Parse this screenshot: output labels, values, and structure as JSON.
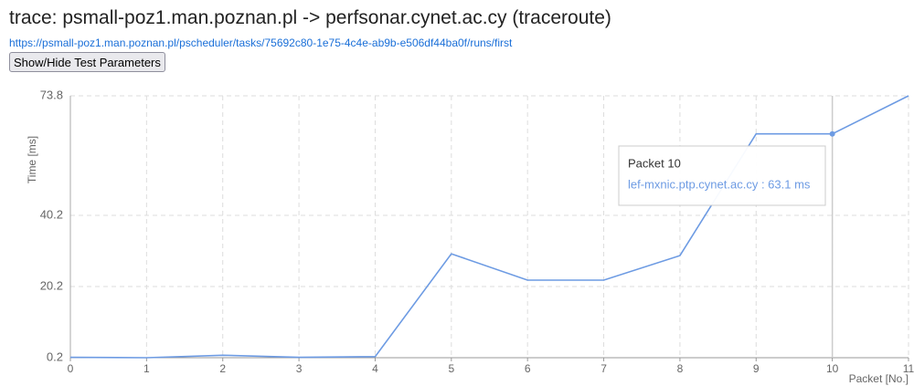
{
  "link": "https://psmall-poz1.man.poznan.pl/pscheduler/tasks/75692c80-1e75-4c4e-ab9b-e506df44ba0f/runs/first",
  "button": "Show/Hide Test Parameters",
  "chart_data": {
    "type": "line",
    "title": "trace: psmall-poz1.man.poznan.pl -> perfsonar.cynet.ac.cy (traceroute)",
    "x_label": "Packet [No.]",
    "y_label": "Time [ms]",
    "x": [
      0,
      1,
      2,
      3,
      4,
      5,
      6,
      7,
      8,
      9,
      10,
      11
    ],
    "series": [
      {
        "name": "lef-mxnic.ptp.cynet.ac.cy",
        "color": "#6d9be3",
        "values": [
          0.3,
          0.2,
          0.9,
          0.3,
          0.5,
          29.4,
          22.0,
          22.0,
          28.9,
          63.1,
          63.1,
          73.8
        ]
      }
    ],
    "xlim": [
      0,
      11
    ],
    "xticks": [
      0,
      1,
      2,
      3,
      4,
      5,
      6,
      7,
      8,
      9,
      10,
      11
    ],
    "ylim": [
      0.2,
      73.8
    ],
    "yticks": [
      0.2,
      20.2,
      40.2,
      73.8
    ],
    "grid": true,
    "tooltip": {
      "title": "Packet 10",
      "text": "lef-mxnic.ptp.cynet.ac.cy : 63.1 ms"
    }
  }
}
